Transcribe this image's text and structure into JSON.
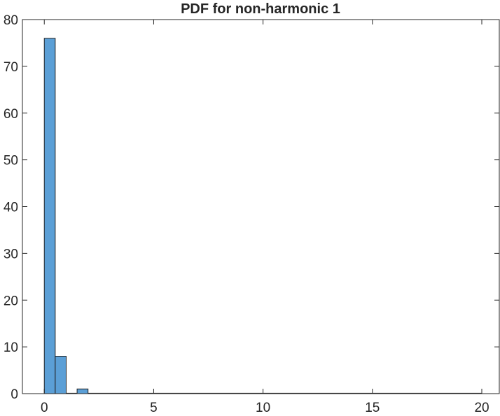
{
  "chart_data": {
    "type": "bar",
    "title": "PDF for non-harmonic 1",
    "xlabel": "",
    "ylabel": "",
    "xlim": [
      -1,
      20.8
    ],
    "ylim": [
      0,
      80
    ],
    "xticks": [
      0,
      5,
      10,
      15,
      20
    ],
    "yticks": [
      0,
      10,
      20,
      30,
      40,
      50,
      60,
      70,
      80
    ],
    "bin_width": 0.5,
    "bins": [
      {
        "x0": 0.0,
        "x1": 0.5,
        "value": 76
      },
      {
        "x0": 0.5,
        "x1": 1.0,
        "value": 8
      },
      {
        "x0": 1.0,
        "x1": 1.5,
        "value": 0
      },
      {
        "x0": 1.5,
        "x1": 2.0,
        "value": 1
      },
      {
        "x0": 2.0,
        "x1": 20.0,
        "value": 0
      }
    ],
    "grid": false,
    "legend": "none",
    "colors": {
      "bar_fill": "#5b9fd6",
      "bar_edge": "#222222",
      "axis": "#262626"
    }
  }
}
